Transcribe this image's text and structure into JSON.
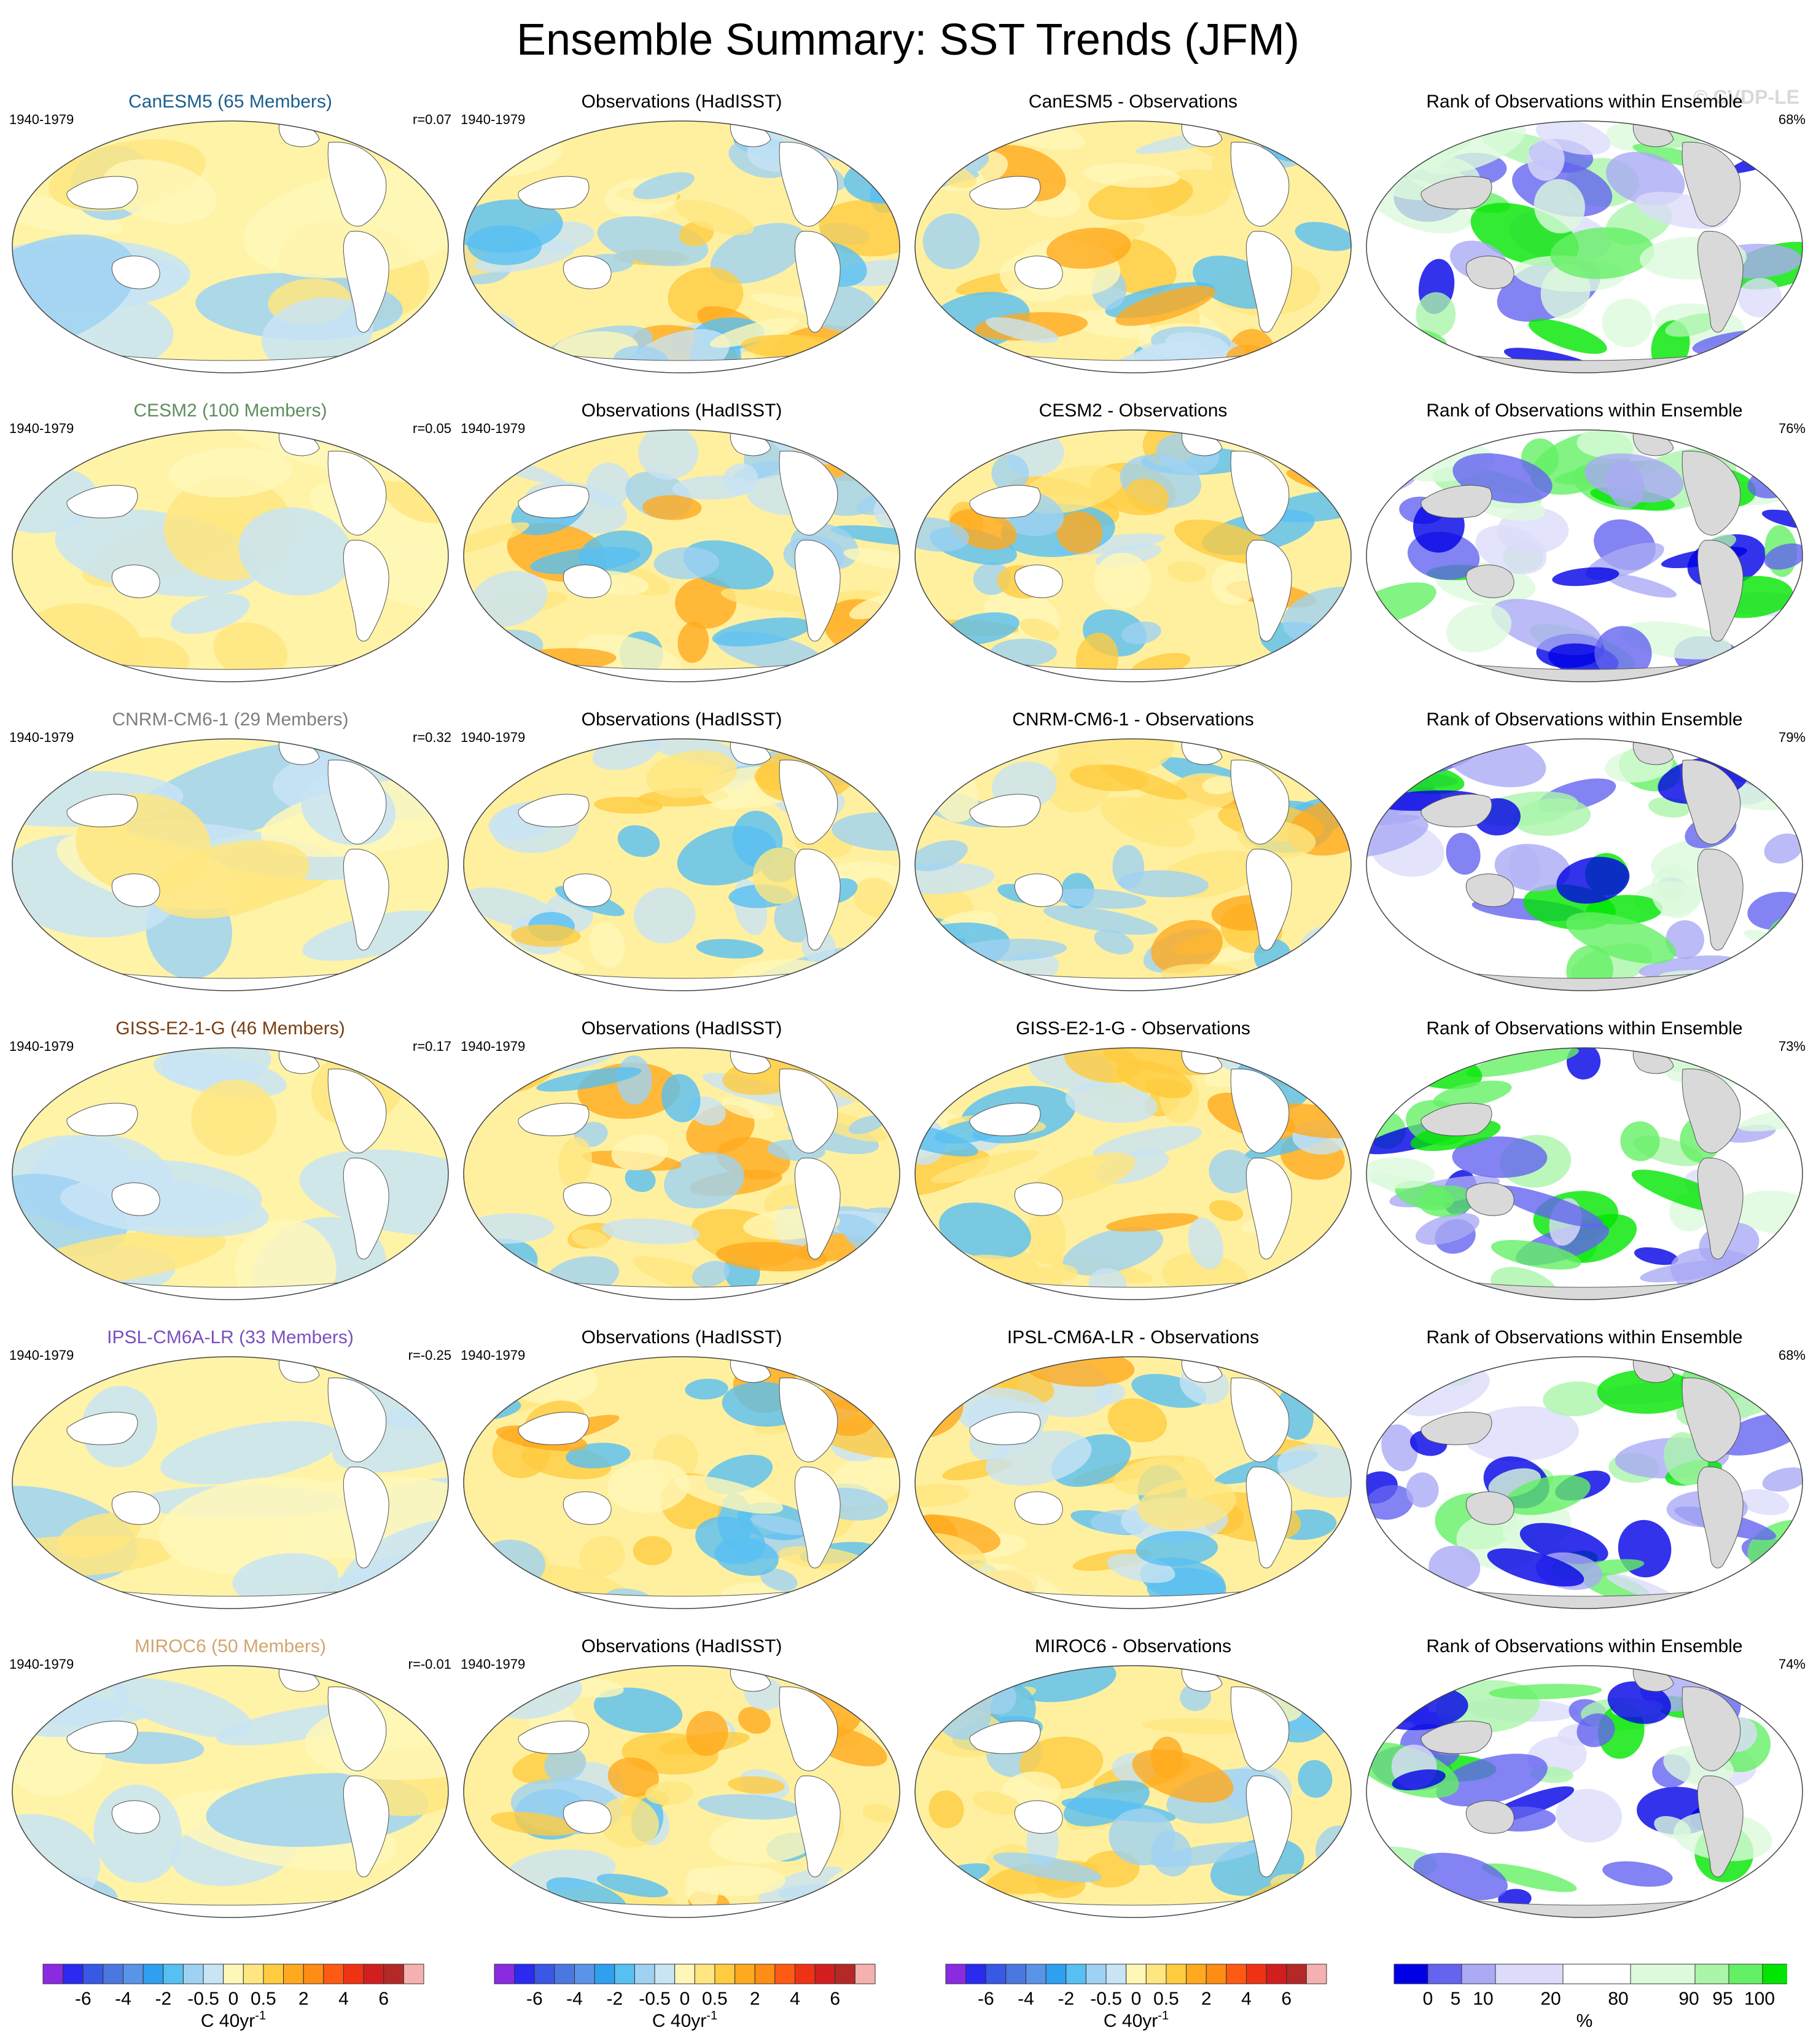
{
  "figure": {
    "title": "Ensemble Summary: SST Trends (JFM)",
    "watermark": "© CVDP-LE"
  },
  "rows": [
    {
      "model": {
        "title": "CanESM5 (65 Members)",
        "color": "#1a5f8c",
        "period": "1940-1979",
        "pattern_corr": "r=0.07"
      },
      "obs": {
        "title": "Observations (HadISST)",
        "period": "1940-1979"
      },
      "diff": {
        "title": "CanESM5 - Observations"
      },
      "rank": {
        "title": "Rank of Observations within Ensemble",
        "pct": "68%"
      }
    },
    {
      "model": {
        "title": "CESM2 (100 Members)",
        "color": "#5e8e5e",
        "period": "1940-1979",
        "pattern_corr": "r=0.05"
      },
      "obs": {
        "title": "Observations (HadISST)",
        "period": "1940-1979"
      },
      "diff": {
        "title": "CESM2 - Observations"
      },
      "rank": {
        "title": "Rank of Observations within Ensemble",
        "pct": "76%"
      }
    },
    {
      "model": {
        "title": "CNRM-CM6-1 (29 Members)",
        "color": "#7f7f7f",
        "period": "1940-1979",
        "pattern_corr": "r=0.32"
      },
      "obs": {
        "title": "Observations (HadISST)",
        "period": "1940-1979"
      },
      "diff": {
        "title": "CNRM-CM6-1 - Observations"
      },
      "rank": {
        "title": "Rank of Observations within Ensemble",
        "pct": "79%"
      }
    },
    {
      "model": {
        "title": "GISS-E2-1-G (46 Members)",
        "color": "#7a3e12",
        "period": "1940-1979",
        "pattern_corr": "r=0.17"
      },
      "obs": {
        "title": "Observations (HadISST)",
        "period": "1940-1979"
      },
      "diff": {
        "title": "GISS-E2-1-G - Observations"
      },
      "rank": {
        "title": "Rank of Observations within Ensemble",
        "pct": "73%"
      }
    },
    {
      "model": {
        "title": "IPSL-CM6A-LR (33 Members)",
        "color": "#7b4fbf",
        "period": "1940-1979",
        "pattern_corr": "r=-0.25"
      },
      "obs": {
        "title": "Observations (HadISST)",
        "period": "1940-1979"
      },
      "diff": {
        "title": "IPSL-CM6A-LR - Observations"
      },
      "rank": {
        "title": "Rank of Observations within Ensemble",
        "pct": "68%"
      }
    },
    {
      "model": {
        "title": "MIROC6 (50 Members)",
        "color": "#d2a56e",
        "period": "1940-1979",
        "pattern_corr": "r=-0.01"
      },
      "obs": {
        "title": "Observations (HadISST)",
        "period": "1940-1979"
      },
      "diff": {
        "title": "MIROC6 - Observations"
      },
      "rank": {
        "title": "Rank of Observations within Ensemble",
        "pct": "74%"
      }
    }
  ],
  "colorbars": {
    "trend": {
      "colors": [
        "#8a2be2",
        "#2a2af0",
        "#3a58e6",
        "#4a78e0",
        "#5a94e8",
        "#2f9ff0",
        "#58bff2",
        "#9fd2f2",
        "#c8e4f5",
        "#fff7b8",
        "#ffe680",
        "#ffcc40",
        "#ffaa1e",
        "#ff8c14",
        "#ff5a14",
        "#f03214",
        "#d21e1e",
        "#b42828",
        "#f5b0b0"
      ],
      "labels": [
        "-6",
        "-4",
        "-2",
        "-0.5",
        "0",
        "0.5",
        "2",
        "4",
        "6"
      ],
      "units": "C 40yr",
      "units_sup": "-1"
    },
    "rank": {
      "colors": [
        "#0000e6",
        "#6464f0",
        "#aaaaf5",
        "#dcdcfa",
        "#ffffff",
        "#ffffff",
        "#dcfadc",
        "#aaf5aa",
        "#64f064",
        "#00e600"
      ],
      "labels": [
        "0",
        "5",
        "10",
        "20",
        "80",
        "90",
        "95",
        "100"
      ],
      "units": "%"
    }
  }
}
